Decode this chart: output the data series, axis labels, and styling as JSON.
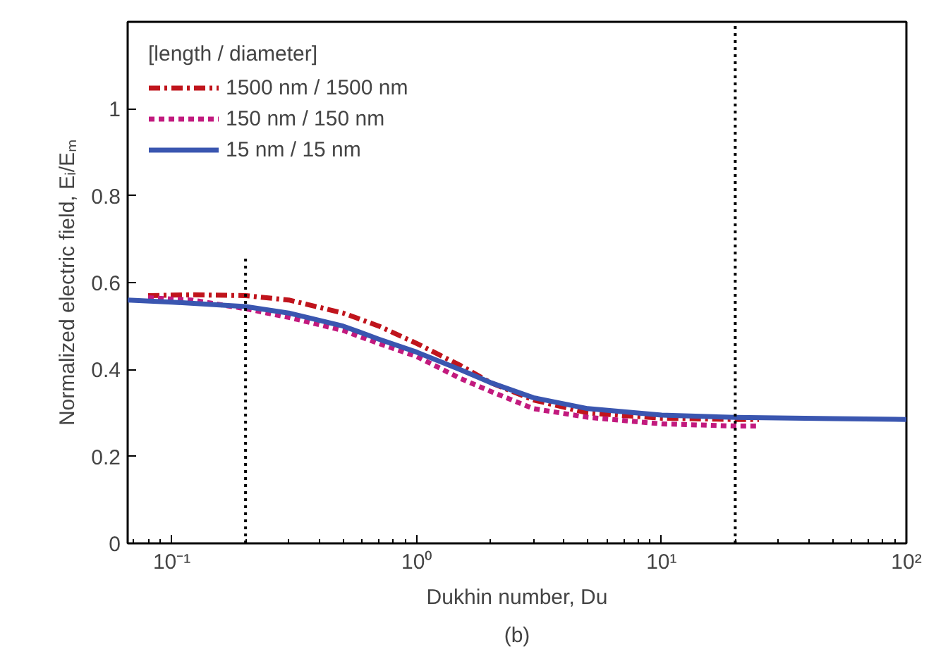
{
  "chart_data": {
    "type": "line",
    "xlabel": "Dukhin number, Du",
    "ylabel": "Normalized electric field, Eᵢ/Eₘ",
    "legend_title": "[length / diameter]",
    "log": "x",
    "xlim": [
      0.066,
      100
    ],
    "ylim": [
      0,
      1.2
    ],
    "xticks": [
      {
        "value": 0.1,
        "label": "10⁻¹"
      },
      {
        "value": 1,
        "label": "10⁰"
      },
      {
        "value": 10,
        "label": "10¹"
      },
      {
        "value": 100,
        "label": "10²"
      }
    ],
    "yticks": [
      0,
      0.2,
      0.4,
      0.6,
      0.8,
      1
    ],
    "grid": false,
    "legend": "top left",
    "series": [
      {
        "name": "1500 nm / 1500 nm",
        "color": "#c0141c",
        "line_style": "dashdot",
        "x": [
          0.08,
          0.12,
          0.2,
          0.3,
          0.5,
          0.7,
          1,
          1.5,
          2,
          3,
          5,
          10,
          20,
          25
        ],
        "values": [
          0.57,
          0.572,
          0.57,
          0.56,
          0.53,
          0.5,
          0.46,
          0.41,
          0.37,
          0.33,
          0.3,
          0.288,
          0.285,
          0.285
        ]
      },
      {
        "name": "150 nm / 150 nm",
        "color": "#c21a7e",
        "line_style": "dashed",
        "x": [
          0.08,
          0.12,
          0.2,
          0.3,
          0.5,
          0.7,
          1,
          1.5,
          2,
          3,
          5,
          10,
          20,
          25
        ],
        "values": [
          0.565,
          0.56,
          0.54,
          0.52,
          0.49,
          0.46,
          0.43,
          0.38,
          0.35,
          0.31,
          0.29,
          0.275,
          0.27,
          0.27
        ]
      },
      {
        "name": "15 nm / 15 nm",
        "color": "#3a56b0",
        "line_style": "solid",
        "x": [
          0.066,
          0.1,
          0.2,
          0.3,
          0.5,
          0.7,
          1,
          1.5,
          2,
          3,
          5,
          10,
          20,
          50,
          100
        ],
        "values": [
          0.56,
          0.555,
          0.545,
          0.53,
          0.5,
          0.47,
          0.44,
          0.4,
          0.37,
          0.335,
          0.31,
          0.295,
          0.29,
          0.287,
          0.285
        ]
      },
      {
        "color": "#000000",
        "line_style": "dotted",
        "x": [
          0.2,
          0.2
        ],
        "values": [
          0,
          0.66
        ]
      },
      {
        "color": "#000000",
        "line_style": "dotted",
        "x": [
          20,
          20
        ],
        "values": [
          0,
          1.2
        ]
      }
    ],
    "annotations": [
      "(b)"
    ]
  }
}
